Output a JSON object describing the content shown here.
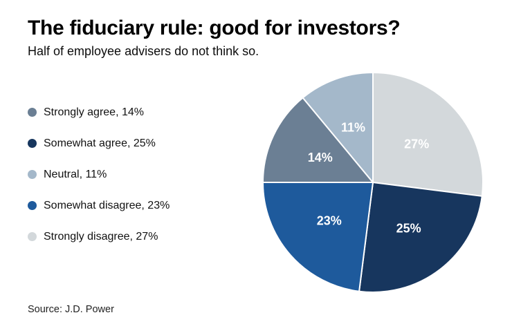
{
  "header": {
    "title": "The fiduciary rule: good for investors?",
    "subtitle": "Half of employee advisers do not think so."
  },
  "source": "Source: J.D. Power",
  "chart_data": {
    "type": "pie",
    "title": "The fiduciary rule: good for investors?",
    "subtitle": "Half of employee advisers do not think so.",
    "unit": "%",
    "start_angle_deg": 0,
    "direction": "clockwise",
    "slices": [
      {
        "label": "Strongly agree",
        "value": 14,
        "color": "#6b7f94",
        "pie_label": "14%",
        "display": "Strongly agree, 14%"
      },
      {
        "label": "Somewhat agree",
        "value": 25,
        "color": "#17365e",
        "pie_label": "25%",
        "display": "Somewhat agree, 25%"
      },
      {
        "label": "Neutral",
        "value": 11,
        "color": "#a4b8ca",
        "pie_label": "11%",
        "display": "Neutral, 11%"
      },
      {
        "label": "Somewhat disagree",
        "value": 23,
        "color": "#1e5a9c",
        "pie_label": "23%",
        "display": "Somewhat disagree, 23%"
      },
      {
        "label": "Strongly disagree",
        "value": 27,
        "color": "#d3d8db",
        "pie_label": "27%",
        "display": "Strongly disagree, 27%"
      }
    ],
    "draw_order": [
      "Strongly disagree",
      "Somewhat agree",
      "Somewhat disagree",
      "Strongly agree",
      "Neutral"
    ],
    "slice_label_color": "#ffffff",
    "legend_position": "left"
  }
}
